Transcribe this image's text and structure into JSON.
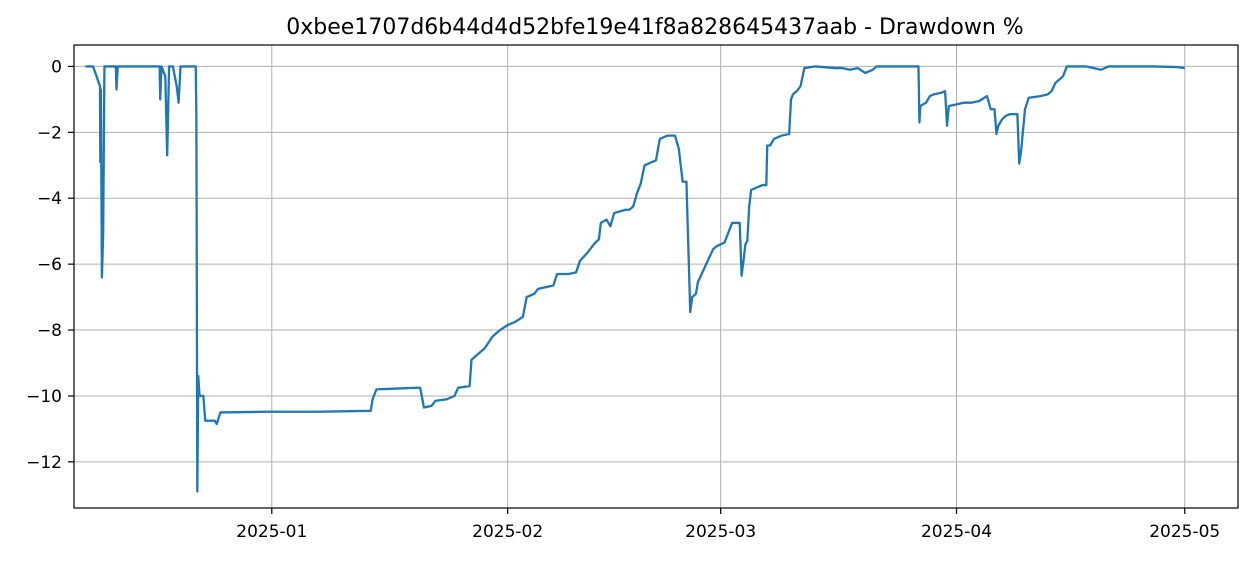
{
  "chart_data": {
    "type": "line",
    "title": "0xbee1707d6b44d4d52bfe19e41f8a828645437aab - Drawdown %",
    "xlabel": "",
    "ylabel": "",
    "x_axis_type": "date",
    "xlim": [
      "2024-12-06",
      "2025-05-08"
    ],
    "ylim": [
      -13.4,
      0.65
    ],
    "grid": true,
    "legend": "none",
    "line_color": "#1f77b4",
    "x_ticks": [
      {
        "date": "2025-01-01",
        "label": "2025-01"
      },
      {
        "date": "2025-02-01",
        "label": "2025-02"
      },
      {
        "date": "2025-03-01",
        "label": "2025-03"
      },
      {
        "date": "2025-04-01",
        "label": "2025-04"
      },
      {
        "date": "2025-05-01",
        "label": "2025-05"
      }
    ],
    "y_ticks": [
      {
        "value": 0,
        "label": "0"
      },
      {
        "value": -2,
        "label": "−2"
      },
      {
        "value": -4,
        "label": "−4"
      },
      {
        "value": -6,
        "label": "−6"
      },
      {
        "value": -8,
        "label": "−8"
      },
      {
        "value": -10,
        "label": "−10"
      },
      {
        "value": -12,
        "label": "−12"
      }
    ],
    "series": [
      {
        "points": [
          [
            "2024-12-07T12:00",
            0
          ],
          [
            "2024-12-08T12:00",
            0
          ],
          [
            "2024-12-09T10:00",
            -0.6
          ],
          [
            "2024-12-09T11:00",
            -2.9
          ],
          [
            "2024-12-09T13:00",
            -0.7
          ],
          [
            "2024-12-09T16:00",
            -6.4
          ],
          [
            "2024-12-09T20:00",
            -5.1
          ],
          [
            "2024-12-10T00:00",
            0
          ],
          [
            "2024-12-11T12:00",
            0
          ],
          [
            "2024-12-11T14:00",
            -0.7
          ],
          [
            "2024-12-11T18:00",
            0
          ],
          [
            "2024-12-17T06:00",
            0
          ],
          [
            "2024-12-17T08:00",
            -1.0
          ],
          [
            "2024-12-17T12:00",
            0
          ],
          [
            "2024-12-18T00:00",
            -0.3
          ],
          [
            "2024-12-18T06:00",
            -2.7
          ],
          [
            "2024-12-18T12:00",
            0
          ],
          [
            "2024-12-19T00:00",
            0
          ],
          [
            "2024-12-19T12:00",
            -0.6
          ],
          [
            "2024-12-19T18:00",
            -1.1
          ],
          [
            "2024-12-20T00:00",
            0
          ],
          [
            "2024-12-22T00:00",
            0
          ],
          [
            "2024-12-22T02:00",
            -1.5
          ],
          [
            "2024-12-22T03:00",
            -5.0
          ],
          [
            "2024-12-22T05:00",
            -12.9
          ],
          [
            "2024-12-22T08:00",
            -9.4
          ],
          [
            "2024-12-22T12:00",
            -10.0
          ],
          [
            "2024-12-23T00:00",
            -10.0
          ],
          [
            "2024-12-23T06:00",
            -10.75
          ],
          [
            "2024-12-24T12:00",
            -10.75
          ],
          [
            "2024-12-24T18:00",
            -10.85
          ],
          [
            "2024-12-25T06:00",
            -10.5
          ],
          [
            "2024-12-31T00:00",
            -10.48
          ],
          [
            "2025-01-07T00:00",
            -10.48
          ],
          [
            "2025-01-14T00:00",
            -10.45
          ],
          [
            "2025-01-14T06:00",
            -10.1
          ],
          [
            "2025-01-14T18:00",
            -9.8
          ],
          [
            "2025-01-20T00:00",
            -9.75
          ],
          [
            "2025-01-20T12:00",
            -9.75
          ],
          [
            "2025-01-21T00:00",
            -10.35
          ],
          [
            "2025-01-22T00:00",
            -10.3
          ],
          [
            "2025-01-22T12:00",
            -10.15
          ],
          [
            "2025-01-24T00:00",
            -10.1
          ],
          [
            "2025-01-25T00:00",
            -10.0
          ],
          [
            "2025-01-25T12:00",
            -9.75
          ],
          [
            "2025-01-27T00:00",
            -9.7
          ],
          [
            "2025-01-27T06:00",
            -8.9
          ],
          [
            "2025-01-28T00:00",
            -8.75
          ],
          [
            "2025-01-29T00:00",
            -8.55
          ],
          [
            "2025-01-30T00:00",
            -8.2
          ],
          [
            "2025-01-31T00:00",
            -8.0
          ],
          [
            "2025-02-01T00:00",
            -7.85
          ],
          [
            "2025-02-02T00:00",
            -7.75
          ],
          [
            "2025-02-03T00:00",
            -7.6
          ],
          [
            "2025-02-03T12:00",
            -7.0
          ],
          [
            "2025-02-04T12:00",
            -6.9
          ],
          [
            "2025-02-05T00:00",
            -6.75
          ],
          [
            "2025-02-07T00:00",
            -6.65
          ],
          [
            "2025-02-07T12:00",
            -6.3
          ],
          [
            "2025-02-09T00:00",
            -6.3
          ],
          [
            "2025-02-10T00:00",
            -6.25
          ],
          [
            "2025-02-10T12:00",
            -5.9
          ],
          [
            "2025-02-11T12:00",
            -5.65
          ],
          [
            "2025-02-12T00:00",
            -5.5
          ],
          [
            "2025-02-12T12:00",
            -5.35
          ],
          [
            "2025-02-13T00:00",
            -5.25
          ],
          [
            "2025-02-13T06:00",
            -4.75
          ],
          [
            "2025-02-14T00:00",
            -4.65
          ],
          [
            "2025-02-14T12:00",
            -4.85
          ],
          [
            "2025-02-15T00:00",
            -4.45
          ],
          [
            "2025-02-16T12:00",
            -4.35
          ],
          [
            "2025-02-17T00:00",
            -4.35
          ],
          [
            "2025-02-17T12:00",
            -4.25
          ],
          [
            "2025-02-18T00:00",
            -3.85
          ],
          [
            "2025-02-18T12:00",
            -3.55
          ],
          [
            "2025-02-19T00:00",
            -3.0
          ],
          [
            "2025-02-20T00:00",
            -2.9
          ],
          [
            "2025-02-20T12:00",
            -2.85
          ],
          [
            "2025-02-21T00:00",
            -2.2
          ],
          [
            "2025-02-22T00:00",
            -2.1
          ],
          [
            "2025-02-23T00:00",
            -2.1
          ],
          [
            "2025-02-23T12:00",
            -2.5
          ],
          [
            "2025-02-24T00:00",
            -3.5
          ],
          [
            "2025-02-24T12:00",
            -3.5
          ],
          [
            "2025-02-25T00:00",
            -7.45
          ],
          [
            "2025-02-25T06:00",
            -7.0
          ],
          [
            "2025-02-25T18:00",
            -6.9
          ],
          [
            "2025-02-26T00:00",
            -6.55
          ],
          [
            "2025-02-26T12:00",
            -6.3
          ],
          [
            "2025-02-27T00:00",
            -6.05
          ],
          [
            "2025-02-27T12:00",
            -5.8
          ],
          [
            "2025-02-28T00:00",
            -5.55
          ],
          [
            "2025-02-28T12:00",
            -5.45
          ],
          [
            "2025-03-01T12:00",
            -5.35
          ],
          [
            "2025-03-02T00:00",
            -5.05
          ],
          [
            "2025-03-02T12:00",
            -4.75
          ],
          [
            "2025-03-03T12:00",
            -4.75
          ],
          [
            "2025-03-03T18:00",
            -6.35
          ],
          [
            "2025-03-04T00:00",
            -5.9
          ],
          [
            "2025-03-04T06:00",
            -5.4
          ],
          [
            "2025-03-04T12:00",
            -5.3
          ],
          [
            "2025-03-04T18:00",
            -4.25
          ],
          [
            "2025-03-05T00:00",
            -3.75
          ],
          [
            "2025-03-05T12:00",
            -3.7
          ],
          [
            "2025-03-06T12:00",
            -3.6
          ],
          [
            "2025-03-07T00:00",
            -3.6
          ],
          [
            "2025-03-07T03:00",
            -2.4
          ],
          [
            "2025-03-07T12:00",
            -2.4
          ],
          [
            "2025-03-08T00:00",
            -2.2
          ],
          [
            "2025-03-09T00:00",
            -2.1
          ],
          [
            "2025-03-10T00:00",
            -2.05
          ],
          [
            "2025-03-10T06:00",
            -1.0
          ],
          [
            "2025-03-10T12:00",
            -0.85
          ],
          [
            "2025-03-11T00:00",
            -0.75
          ],
          [
            "2025-03-11T12:00",
            -0.6
          ],
          [
            "2025-03-12T00:00",
            -0.05
          ],
          [
            "2025-03-13T12:00",
            0
          ],
          [
            "2025-03-16T00:00",
            -0.05
          ],
          [
            "2025-03-17T00:00",
            -0.05
          ],
          [
            "2025-03-18T00:00",
            -0.1
          ],
          [
            "2025-03-19T00:00",
            -0.05
          ],
          [
            "2025-03-20T00:00",
            -0.2
          ],
          [
            "2025-03-21T00:00",
            -0.1
          ],
          [
            "2025-03-21T12:00",
            0
          ],
          [
            "2025-03-27T00:00",
            0
          ],
          [
            "2025-03-27T03:00",
            -1.7
          ],
          [
            "2025-03-27T06:00",
            -1.2
          ],
          [
            "2025-03-28T00:00",
            -1.1
          ],
          [
            "2025-03-28T12:00",
            -0.9
          ],
          [
            "2025-03-29T00:00",
            -0.85
          ],
          [
            "2025-03-30T00:00",
            -0.8
          ],
          [
            "2025-03-30T12:00",
            -0.75
          ],
          [
            "2025-03-30T18:00",
            -1.8
          ],
          [
            "2025-03-31T00:00",
            -1.2
          ],
          [
            "2025-04-01T00:00",
            -1.15
          ],
          [
            "2025-04-02T00:00",
            -1.1
          ],
          [
            "2025-04-03T00:00",
            -1.1
          ],
          [
            "2025-04-04T00:00",
            -1.05
          ],
          [
            "2025-04-05T00:00",
            -0.9
          ],
          [
            "2025-04-05T12:00",
            -1.3
          ],
          [
            "2025-04-06T00:00",
            -1.3
          ],
          [
            "2025-04-06T06:00",
            -2.05
          ],
          [
            "2025-04-06T12:00",
            -1.8
          ],
          [
            "2025-04-07T00:00",
            -1.6
          ],
          [
            "2025-04-07T12:00",
            -1.5
          ],
          [
            "2025-04-08T00:00",
            -1.45
          ],
          [
            "2025-04-09T00:00",
            -1.45
          ],
          [
            "2025-04-09T06:00",
            -2.95
          ],
          [
            "2025-04-09T12:00",
            -2.55
          ],
          [
            "2025-04-10T00:00",
            -1.3
          ],
          [
            "2025-04-10T12:00",
            -0.95
          ],
          [
            "2025-04-12T00:00",
            -0.9
          ],
          [
            "2025-04-13T00:00",
            -0.85
          ],
          [
            "2025-04-13T12:00",
            -0.75
          ],
          [
            "2025-04-14T00:00",
            -0.5
          ],
          [
            "2025-04-15T00:00",
            -0.3
          ],
          [
            "2025-04-15T12:00",
            0
          ],
          [
            "2025-04-18T00:00",
            0
          ],
          [
            "2025-04-20T00:00",
            -0.1
          ],
          [
            "2025-04-21T00:00",
            0
          ],
          [
            "2025-04-27T00:00",
            0
          ],
          [
            "2025-04-30T00:00",
            -0.02
          ],
          [
            "2025-05-01T00:00",
            -0.05
          ]
        ]
      }
    ]
  }
}
